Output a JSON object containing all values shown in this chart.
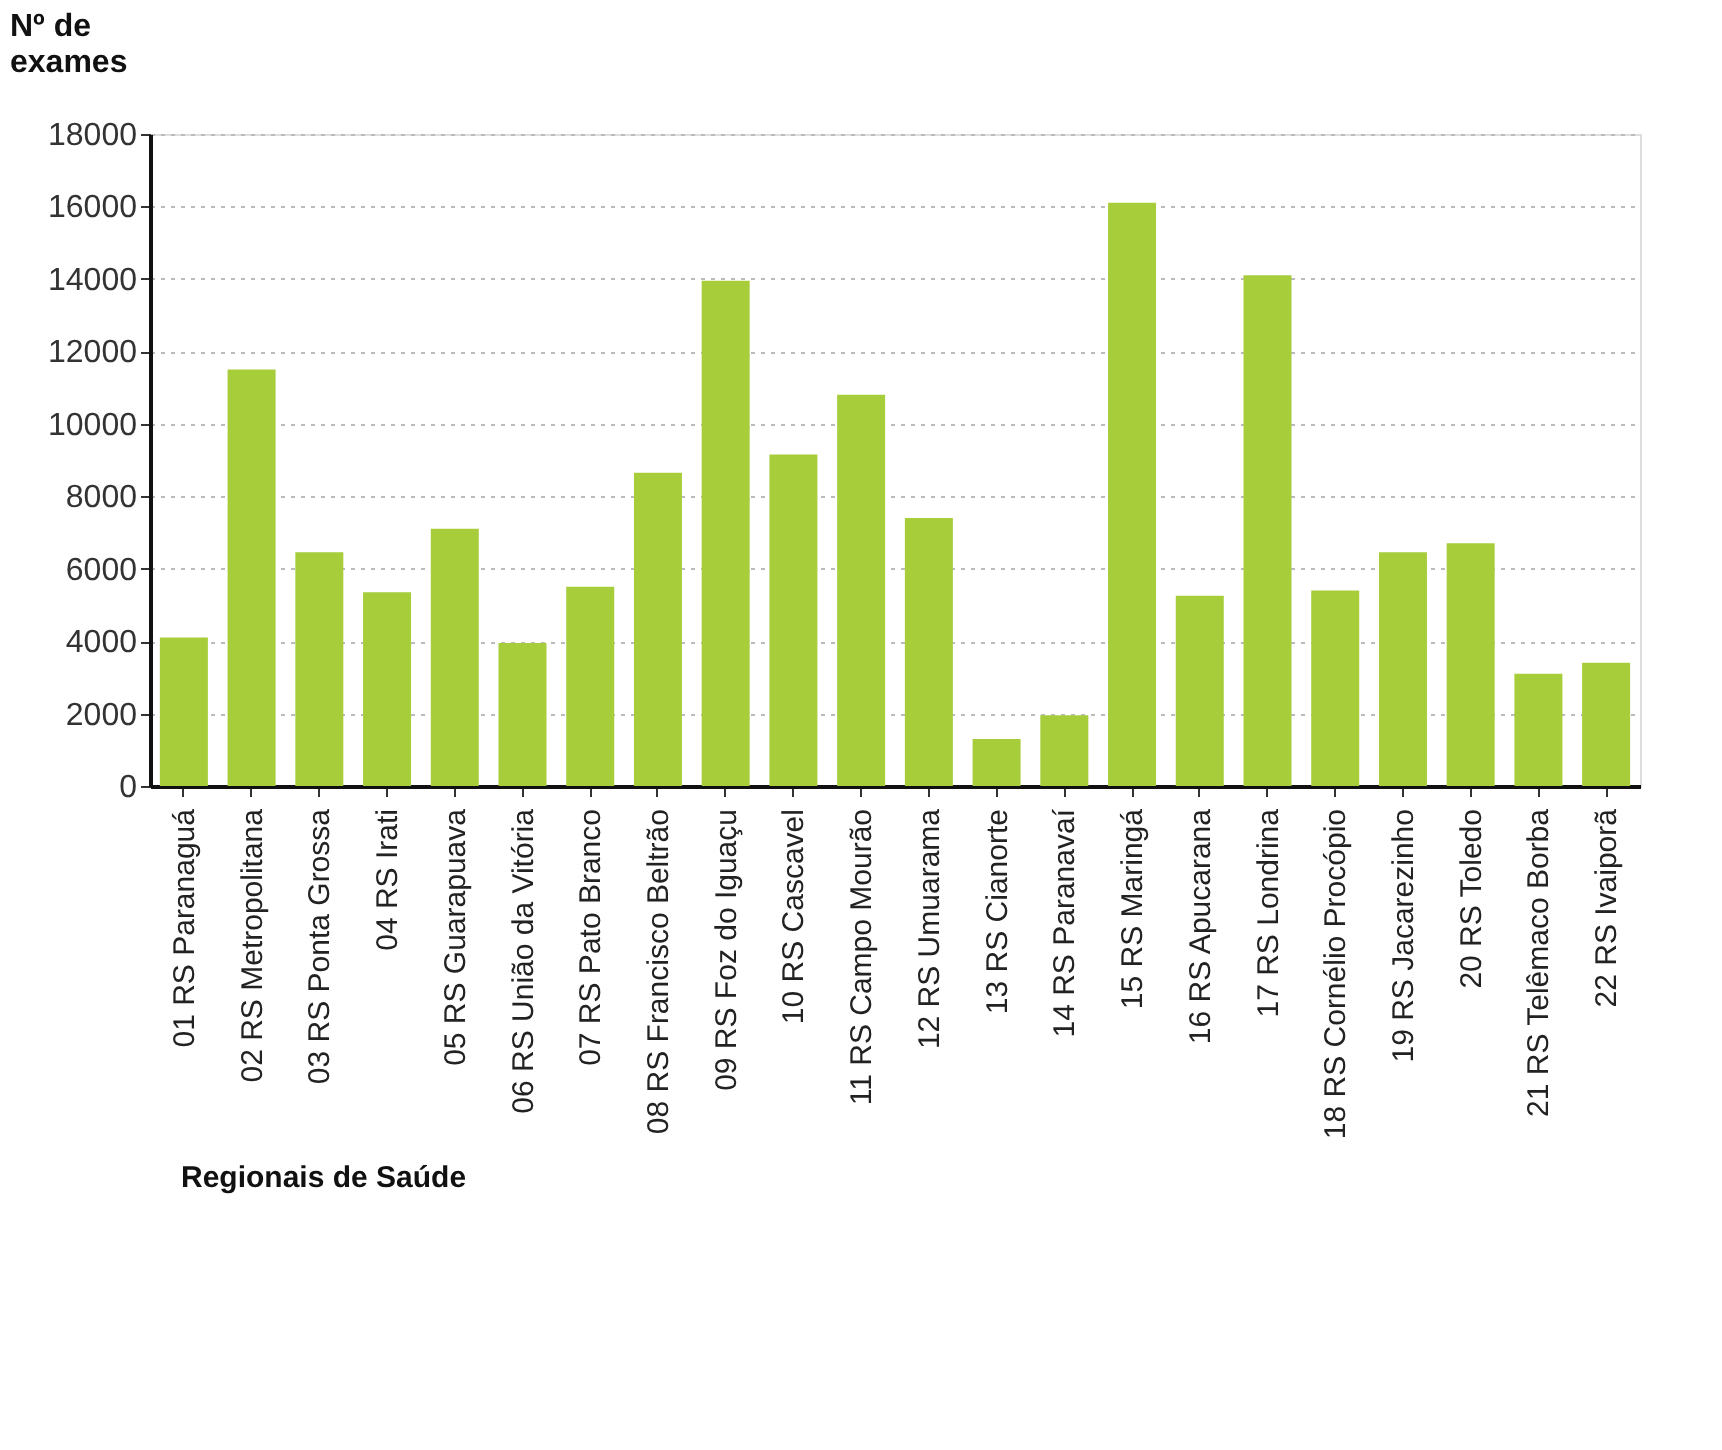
{
  "chart_data": {
    "type": "bar",
    "title": "Nº de\nexames",
    "xlabel": "Regionais de Saúde",
    "categories": [
      "01 RS Paranaguá",
      "02 RS Metropolitana",
      "03 RS Ponta Grossa",
      "04 RS Irati",
      "05 RS Guarapuava",
      "06 RS União da Vitória",
      "07 RS Pato Branco",
      "08 RS Francisco Beltrão",
      "09 RS Foz do Iguaçu",
      "10 RS Cascavel",
      "11 RS Campo Mourão",
      "12 RS Umuarama",
      "13 RS Cianorte",
      "14 RS Paranavaí",
      "15 RS Maringá",
      "16 RS Apucarana",
      "17 RS Londrina",
      "18 RS Cornélio Procópio",
      "19 RS Jacarezinho",
      "20 RS Toledo",
      "21 RS Telêmaco Borba",
      "22 RS Ivaiporã"
    ],
    "values": [
      4100,
      11500,
      6450,
      5350,
      7100,
      3950,
      5500,
      8650,
      13950,
      9150,
      10800,
      7400,
      1300,
      1950,
      16100,
      5250,
      14100,
      5400,
      6450,
      6700,
      3100,
      3400
    ],
    "color": "#a8cd3a",
    "ylim": [
      0,
      18000
    ],
    "yticks": [
      0,
      2000,
      4000,
      6000,
      8000,
      10000,
      12000,
      14000,
      16000,
      18000
    ],
    "grid": "y"
  }
}
